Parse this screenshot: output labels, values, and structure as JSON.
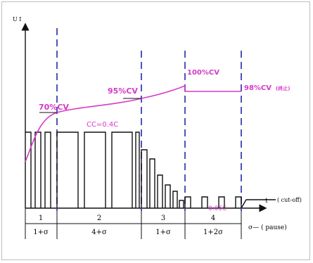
{
  "axes": {
    "y_label": "U I",
    "x_label": "t"
  },
  "labels": {
    "v70": "70%CV",
    "v95": "95%CV",
    "v100": "100%CV",
    "v98": "98%CV",
    "v98_suffix": "(终止)",
    "cc": "CC=0.4C",
    "c005": "0.05C",
    "cutoff": "( cut-off)"
  },
  "stages": [
    {
      "number": "1",
      "duration": "1+σ"
    },
    {
      "number": "2",
      "duration": "4+σ"
    },
    {
      "number": "3",
      "duration": "1+σ"
    },
    {
      "number": "4",
      "duration": "1+2σ"
    }
  ],
  "pause_note": "σ— ( pause)",
  "colors": {
    "voltage_curve": "#d63ac8",
    "stage_divider": "#3d3fb5",
    "pulses": "#111111"
  }
}
